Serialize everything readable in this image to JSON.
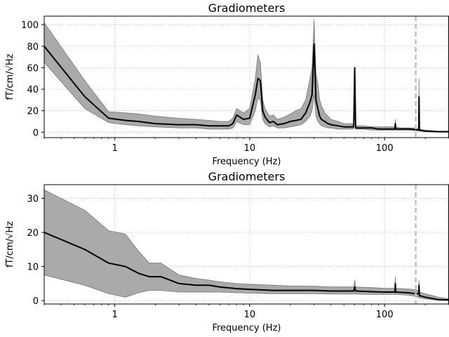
{
  "chart_data": [
    {
      "type": "line",
      "title": "Gradiometers",
      "xlabel": "Frequency (Hz)",
      "ylabel": "fT/cm/√Hz",
      "xscale": "log",
      "xlim": [
        0.3,
        300
      ],
      "ylim": [
        -5,
        108
      ],
      "xticks": [
        1,
        10,
        100
      ],
      "xtick_labels": [
        "1",
        "10",
        "100"
      ],
      "yticks": [
        0,
        20,
        40,
        60,
        80,
        100
      ],
      "ytick_labels": [
        "0",
        "20",
        "40",
        "60",
        "80",
        "100"
      ],
      "grid": true,
      "colors": {
        "mean": "#000000",
        "band": "#aaaaaa",
        "band_edge": "#777777",
        "marker": "#c0c0c0"
      },
      "vline": 170,
      "series": [
        {
          "x": [
            0.3,
            0.6,
            0.9,
            1.2,
            1.5,
            2,
            3,
            4,
            5,
            6,
            7,
            7.5,
            8,
            9,
            10,
            11,
            11.5,
            12,
            12.5,
            13,
            14,
            15,
            16,
            18,
            20,
            22,
            24,
            26,
            28,
            29,
            30,
            31,
            32,
            33,
            34,
            36,
            38,
            40,
            45,
            50,
            55,
            59,
            60,
            61,
            65,
            70,
            80,
            90,
            100,
            110,
            119,
            120,
            121,
            130,
            150,
            170,
            179,
            180,
            181,
            200,
            250,
            300
          ],
          "mean": [
            80,
            33,
            13,
            11,
            10,
            8,
            7,
            7,
            6,
            6,
            6,
            8,
            16,
            12,
            13,
            35,
            50,
            48,
            20,
            14,
            9,
            10,
            7,
            8,
            10,
            11,
            12,
            18,
            28,
            35,
            82,
            30,
            22,
            15,
            12,
            10,
            8,
            7,
            6,
            5,
            5,
            5,
            60,
            4,
            4,
            4,
            4,
            3,
            3,
            3,
            3,
            8,
            3,
            3,
            3,
            2.5,
            2,
            33,
            2,
            1,
            0.5,
            0.5
          ],
          "upper": [
            102,
            48,
            19,
            18,
            17,
            15,
            13,
            12,
            11,
            10,
            10,
            13,
            22,
            18,
            22,
            50,
            72,
            65,
            30,
            22,
            15,
            16,
            12,
            14,
            17,
            20,
            22,
            30,
            50,
            60,
            105,
            55,
            45,
            30,
            25,
            18,
            15,
            12,
            10,
            8,
            8,
            8,
            60,
            6,
            6,
            6,
            5,
            5,
            5,
            5,
            5,
            12,
            5,
            4,
            4,
            4,
            3,
            50,
            3,
            2,
            1,
            1
          ],
          "lower": [
            65,
            22,
            9,
            7,
            6,
            5,
            4,
            4,
            3,
            3,
            3,
            4,
            10,
            7,
            7,
            20,
            32,
            30,
            12,
            8,
            5,
            6,
            4,
            4,
            5,
            6,
            7,
            10,
            15,
            20,
            35,
            15,
            10,
            8,
            6,
            5,
            4,
            4,
            3,
            3,
            3,
            3,
            20,
            3,
            3,
            3,
            2,
            2,
            2,
            2,
            2,
            4,
            2,
            2,
            2,
            1.5,
            1,
            10,
            1,
            0.5,
            0.2,
            0.2
          ]
        }
      ]
    },
    {
      "type": "line",
      "title": "Gradiometers",
      "xlabel": "Frequency (Hz)",
      "ylabel": "fT/cm/√Hz",
      "xscale": "log",
      "xlim": [
        0.3,
        300
      ],
      "ylim": [
        -1,
        34
      ],
      "xticks": [
        1,
        10,
        100
      ],
      "xtick_labels": [
        "1",
        "10",
        "100"
      ],
      "yticks": [
        0,
        10,
        20,
        30
      ],
      "ytick_labels": [
        "0",
        "10",
        "20",
        "30"
      ],
      "grid": true,
      "colors": {
        "mean": "#000000",
        "band": "#aaaaaa",
        "band_edge": "#777777",
        "marker": "#c0c0c0"
      },
      "vline": 170,
      "series": [
        {
          "x": [
            0.3,
            0.6,
            0.9,
            1.2,
            1.5,
            1.8,
            2.2,
            3,
            4,
            5,
            6,
            8,
            10,
            15,
            20,
            30,
            40,
            50,
            59,
            60,
            61,
            80,
            100,
            119,
            120,
            121,
            150,
            170,
            179,
            180,
            181,
            200,
            250,
            300
          ],
          "mean": [
            20,
            15,
            11,
            10,
            8,
            7,
            7,
            5,
            4.5,
            4.5,
            4,
            3.5,
            3.3,
            3,
            3,
            3,
            2.8,
            2.8,
            2.8,
            4,
            2.8,
            2.6,
            2.5,
            2.5,
            5,
            2.5,
            2.3,
            2,
            2,
            4.5,
            1.5,
            1,
            0.3,
            0.2
          ],
          "upper": [
            32.5,
            26.5,
            20.5,
            19.5,
            14.5,
            11,
            11,
            7.5,
            6.5,
            6,
            5.5,
            5,
            4.8,
            4.5,
            4.3,
            4.2,
            4,
            4,
            4,
            6,
            4,
            3.8,
            3.6,
            3.6,
            7,
            3.6,
            3.4,
            3.2,
            3,
            6,
            2.5,
            2,
            1,
            0.5
          ],
          "lower": [
            7.5,
            4.5,
            2,
            1,
            2.3,
            3,
            3,
            2.5,
            2.5,
            2.5,
            2.5,
            2.3,
            2.2,
            2,
            2,
            2,
            1.9,
            1.9,
            1.9,
            2,
            1.9,
            1.8,
            1.8,
            1.8,
            2.5,
            1.8,
            1.6,
            1.2,
            1,
            2.5,
            0.8,
            0.5,
            0.1,
            0
          ]
        }
      ]
    }
  ]
}
